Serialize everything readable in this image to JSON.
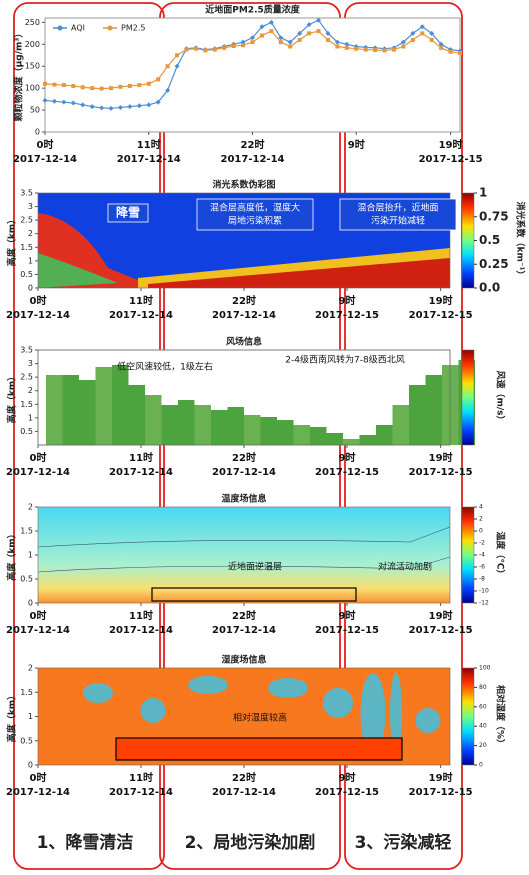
{
  "chart_data": [
    {
      "type": "line",
      "title": "近地面PM2.5质量浓度",
      "ylabel": "颗粒物浓度（μg/m³）",
      "x": [
        0,
        1,
        2,
        3,
        4,
        5,
        6,
        7,
        8,
        9,
        10,
        11,
        12,
        13,
        14,
        15,
        16,
        17,
        18,
        19,
        20,
        21,
        22,
        23,
        24,
        25,
        26,
        27,
        28,
        29,
        30,
        31,
        32,
        33,
        34,
        35,
        36,
        37,
        38,
        39,
        40,
        41,
        42,
        43,
        44
      ],
      "series": [
        {
          "name": "AQI",
          "color": "#4a8fd6",
          "values": [
            72,
            70,
            68,
            66,
            62,
            58,
            55,
            54,
            56,
            58,
            60,
            62,
            68,
            95,
            150,
            190,
            192,
            188,
            190,
            195,
            200,
            205,
            215,
            240,
            250,
            215,
            205,
            225,
            245,
            255,
            225,
            205,
            200,
            195,
            193,
            192,
            190,
            192,
            205,
            225,
            240,
            225,
            200,
            188,
            185
          ]
        },
        {
          "name": "PM2.5",
          "color": "#e8963a",
          "values": [
            110,
            108,
            107,
            105,
            102,
            100,
            99,
            100,
            103,
            105,
            107,
            110,
            120,
            150,
            175,
            188,
            190,
            186,
            188,
            192,
            196,
            198,
            205,
            220,
            230,
            205,
            195,
            210,
            225,
            230,
            210,
            195,
            192,
            190,
            188,
            187,
            186,
            188,
            195,
            210,
            225,
            210,
            192,
            183,
            180
          ]
        }
      ],
      "xlim": [
        0,
        44
      ],
      "ylim": [
        0,
        260
      ],
      "yticks": [
        0,
        50,
        100,
        150,
        200,
        250
      ],
      "xticks": [
        {
          "value": 0,
          "label": "0时"
        },
        {
          "value": 11,
          "label": "11时"
        },
        {
          "value": 22,
          "label": "22时"
        },
        {
          "value": 33,
          "label": "9时"
        },
        {
          "value": 43,
          "label": "19时"
        }
      ],
      "xtick_dates": [
        "2017-12-14",
        "2017-12-14",
        "2017-12-14",
        null,
        "2017-12-15"
      ],
      "legend": "upper left"
    },
    {
      "type": "heatmap",
      "title": "消光系数伪彩图",
      "ylabel": "高度（km）",
      "ylim": [
        0,
        3.5
      ],
      "yticks": [
        0,
        0.5,
        1,
        1.5,
        2,
        2.5,
        3,
        3.5
      ],
      "xlim": [
        0,
        44
      ],
      "xticks": [
        {
          "value": 0,
          "label": "0时"
        },
        {
          "value": 11,
          "label": "11时"
        },
        {
          "value": 22,
          "label": "22时"
        },
        {
          "value": 33,
          "label": "9时"
        },
        {
          "value": 43,
          "label": "19时"
        }
      ],
      "xtick_dates": [
        "2017-12-14",
        "2017-12-14",
        "2017-12-14",
        "2017-12-15",
        "2017-12-15"
      ],
      "colorbar": {
        "label": "消光系数（km⁻¹）",
        "lim": [
          0,
          1
        ],
        "ticks": [
          0.0,
          0.25,
          0.5,
          0.75,
          1
        ],
        "tick_labels": [
          "0.0",
          "0.25",
          "0.5",
          "0.75",
          "1"
        ]
      },
      "annotations": [
        [
          "降雪"
        ],
        [
          "混合层高度低，湿度大",
          "局地污染积累"
        ],
        [
          "混合层抬升，近地面",
          "污染开始减轻"
        ]
      ]
    },
    {
      "type": "heatmap",
      "title": "风场信息",
      "ylabel": "高度（km）",
      "ylim": [
        0,
        3.5
      ],
      "yticks": [
        0.5,
        1,
        1.5,
        2,
        2.5,
        3,
        3.5
      ],
      "xlim": [
        0,
        44
      ],
      "xticks": [
        {
          "value": 0,
          "label": "0时"
        },
        {
          "value": 11,
          "label": "11时"
        },
        {
          "value": 22,
          "label": "22时"
        },
        {
          "value": 33,
          "label": "9时"
        },
        {
          "value": 43,
          "label": "19时"
        }
      ],
      "xtick_dates": [
        "2017-12-14",
        "2017-12-14",
        "2017-12-14",
        "2017-12-15",
        "2017-12-15"
      ],
      "colorbar": {
        "label": "风速（m/s）"
      },
      "annotations": [
        [
          "低空风速较低，1级左右"
        ],
        [
          "2-4级西南风转为7-8级西北风"
        ]
      ]
    },
    {
      "type": "heatmap",
      "title": "温度场信息",
      "ylabel": "高度（km）",
      "ylim": [
        0,
        2
      ],
      "yticks": [
        0,
        0.5,
        1,
        1.5,
        2
      ],
      "xlim": [
        0,
        44
      ],
      "xticks": [
        {
          "value": 0,
          "label": "0时"
        },
        {
          "value": 11,
          "label": "11时"
        },
        {
          "value": 22,
          "label": "22时"
        },
        {
          "value": 33,
          "label": "9时"
        },
        {
          "value": 43,
          "label": "19时"
        }
      ],
      "xtick_dates": [
        "2017-12-14",
        "2017-12-14",
        "2017-12-14",
        "2017-12-15",
        "2017-12-15"
      ],
      "colorbar": {
        "label": "温度（℃）",
        "lim": [
          -12,
          4
        ],
        "ticks": [
          4,
          2,
          0,
          -2,
          -4,
          -6,
          -8,
          -10,
          -12
        ]
      },
      "annotations": [
        [
          "近地面逆温层"
        ],
        [
          "对流活动加剧"
        ]
      ]
    },
    {
      "type": "heatmap",
      "title": "湿度场信息",
      "ylabel": "高度（km）",
      "ylim": [
        0,
        2
      ],
      "yticks": [
        0,
        0.5,
        1,
        1.5,
        2
      ],
      "xlim": [
        0,
        44
      ],
      "xticks": [
        {
          "value": 0,
          "label": "0时"
        },
        {
          "value": 11,
          "label": "11时"
        },
        {
          "value": 22,
          "label": "22时"
        },
        {
          "value": 33,
          "label": "9时"
        },
        {
          "value": 43,
          "label": "19时"
        }
      ],
      "xtick_dates": [
        "2017-12-14",
        "2017-12-14",
        "2017-12-14",
        "2017-12-15",
        "2017-12-15"
      ],
      "colorbar": {
        "label": "相对湿度（%）",
        "lim": [
          0,
          100
        ],
        "ticks": [
          0,
          20,
          40,
          60,
          80,
          100
        ]
      },
      "annotations": [
        [
          "相对湿度较高"
        ]
      ]
    }
  ],
  "stages": [
    "1、降雪清洁",
    "2、局地污染加剧",
    "3、污染减轻"
  ]
}
